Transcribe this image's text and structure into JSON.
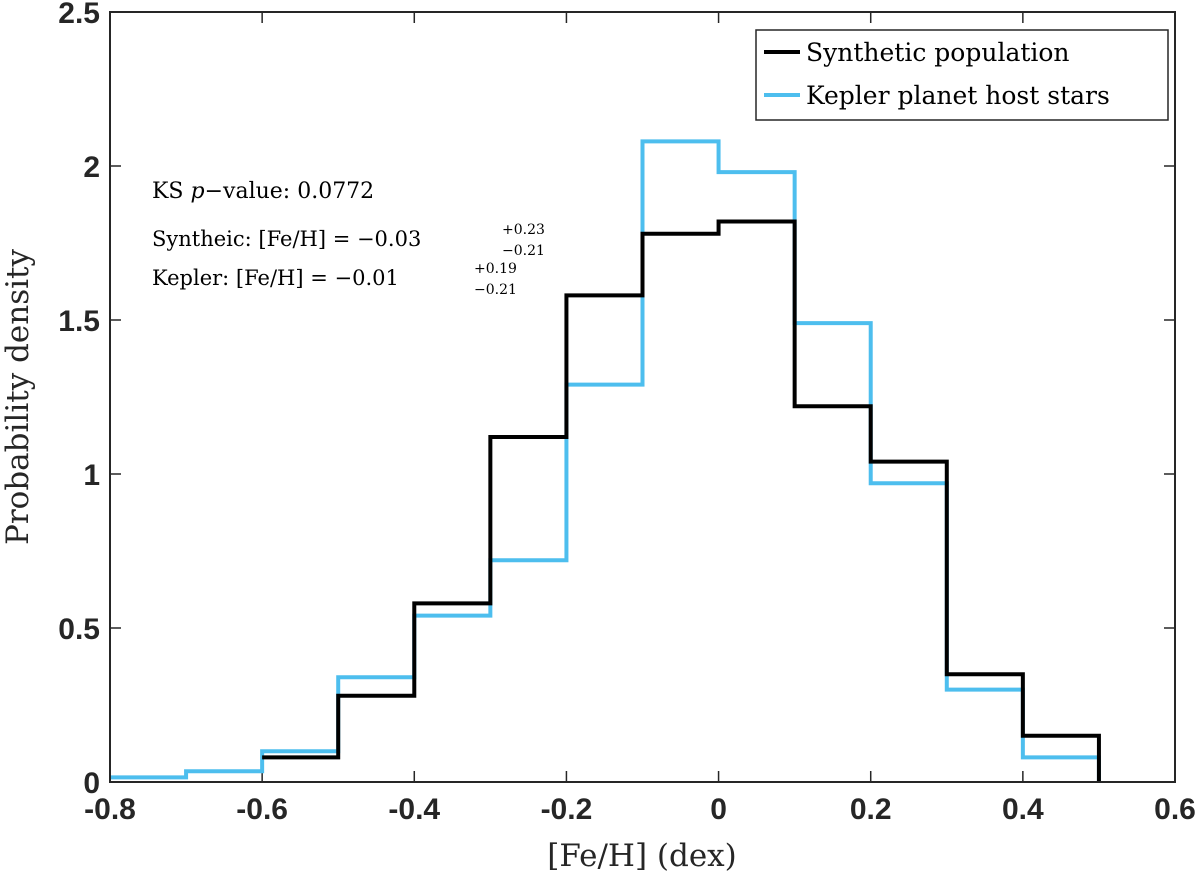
{
  "chart_data": {
    "type": "histogram",
    "xlabel": "[Fe/H] (dex)",
    "ylabel": "Probability density",
    "xlim": [
      -0.8,
      0.6
    ],
    "ylim": [
      0,
      2.5
    ],
    "xticks": [
      -0.8,
      -0.6,
      -0.4,
      -0.2,
      0,
      0.2,
      0.4,
      0.6
    ],
    "yticks": [
      0,
      0.5,
      1,
      1.5,
      2,
      2.5
    ],
    "xtick_labels": [
      "-0.8",
      "-0.6",
      "-0.4",
      "-0.2",
      "0",
      "0.2",
      "0.4",
      "0.6"
    ],
    "ytick_labels": [
      "0",
      "0.5",
      "1",
      "1.5",
      "2",
      "2.5"
    ],
    "bin_edges": [
      -0.8,
      -0.7,
      -0.6,
      -0.5,
      -0.4,
      -0.3,
      -0.2,
      -0.1,
      0.0,
      0.1,
      0.2,
      0.3,
      0.4,
      0.5
    ],
    "series": [
      {
        "name": "Kepler planet host stars",
        "color": "#4DBEEE",
        "values": [
          0.015,
          0.035,
          0.1,
          0.34,
          0.54,
          0.72,
          1.29,
          2.08,
          1.98,
          1.49,
          0.97,
          0.3,
          0.08
        ]
      },
      {
        "name": "Synthetic population",
        "color": "#000000",
        "values": [
          0.0,
          0.0,
          0.08,
          0.28,
          0.58,
          1.12,
          1.58,
          1.78,
          1.82,
          1.22,
          1.04,
          0.35,
          0.15
        ]
      }
    ],
    "legend": {
      "position": "top-right",
      "entries": [
        "Synthetic population",
        "Kepler planet host stars"
      ]
    },
    "annotations": {
      "ks_prefix": "KS ",
      "ks_p": "p",
      "ks_suffix": "−value: 0.0772",
      "syn_prefix": "Syntheic: [Fe/H] = −0.03",
      "syn_sup": "+0.23",
      "syn_sub": "−0.21",
      "kep_prefix": "Kepler: [Fe/H] = −0.01",
      "kep_sup": "+0.19",
      "kep_sub": "−0.21"
    }
  }
}
